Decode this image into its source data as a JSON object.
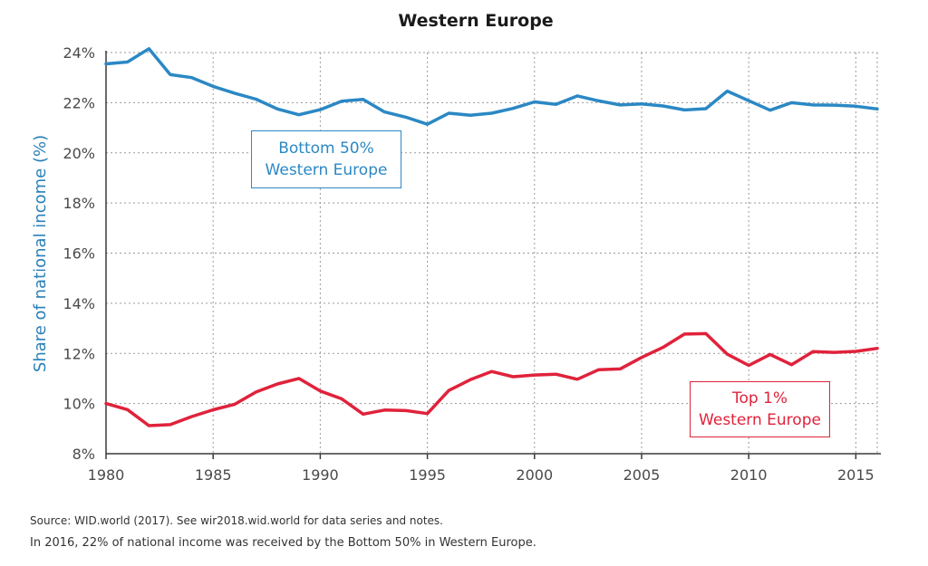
{
  "chart_data": {
    "type": "line",
    "title": "Western Europe",
    "ylabel": "Share of national income (%)",
    "xlabel": "",
    "xlim": [
      1980,
      2016
    ],
    "ylim": [
      8,
      24
    ],
    "x_ticks": [
      1980,
      1985,
      1990,
      1995,
      2000,
      2005,
      2010,
      2015
    ],
    "x_tick_labels": [
      "1980",
      "1985",
      "1990",
      "1995",
      "2000",
      "2005",
      "2010",
      "2015"
    ],
    "y_ticks": [
      8,
      10,
      12,
      14,
      16,
      18,
      20,
      22,
      24
    ],
    "y_tick_labels": [
      "8%",
      "10%",
      "12%",
      "14%",
      "16%",
      "18%",
      "20%",
      "22%",
      "24%"
    ],
    "grid": true,
    "x": [
      1980,
      1981,
      1982,
      1983,
      1984,
      1985,
      1986,
      1987,
      1988,
      1989,
      1990,
      1991,
      1992,
      1993,
      1994,
      1995,
      1996,
      1997,
      1998,
      1999,
      2000,
      2001,
      2002,
      2003,
      2004,
      2005,
      2006,
      2007,
      2008,
      2009,
      2010,
      2011,
      2012,
      2013,
      2014,
      2015,
      2016
    ],
    "series": [
      {
        "name": "Bottom 50% Western Europe",
        "color": "#2b88c4",
        "values": [
          23.55,
          23.62,
          24.15,
          23.12,
          23.0,
          22.65,
          22.38,
          22.14,
          21.75,
          21.52,
          21.72,
          22.06,
          22.13,
          21.63,
          21.42,
          21.14,
          21.58,
          21.5,
          21.58,
          21.77,
          22.03,
          21.93,
          22.27,
          22.07,
          21.91,
          21.95,
          21.87,
          21.71,
          21.76,
          22.46,
          22.08,
          21.7,
          22.0,
          21.91,
          21.9,
          21.86,
          21.75
        ]
      },
      {
        "name": "Top 1% Western Europe",
        "color": "#e0223b",
        "values": [
          10.0,
          9.76,
          9.12,
          9.16,
          9.48,
          9.75,
          9.97,
          10.46,
          10.78,
          11.0,
          10.5,
          10.19,
          9.58,
          9.74,
          9.72,
          9.6,
          10.52,
          10.95,
          11.28,
          11.07,
          11.14,
          11.17,
          10.97,
          11.35,
          11.38,
          11.84,
          12.24,
          12.77,
          12.79,
          11.97,
          11.52,
          11.96,
          11.55,
          12.07,
          12.04,
          12.08,
          12.2
        ]
      }
    ],
    "annotations": {
      "bottom50": [
        "Bottom 50%",
        "Western Europe"
      ],
      "top1": [
        "Top 1%",
        "Western Europe"
      ]
    }
  },
  "source": "Source:  WID.world (2017). See wir2018.wid.world for data series and notes.",
  "caption": "In 2016, 22% of national income was received by the Bottom 50% in Western Europe.",
  "colors": {
    "axis": "#3a3a3a",
    "grid": "#9a9a9a",
    "label": "#2b80b8"
  }
}
